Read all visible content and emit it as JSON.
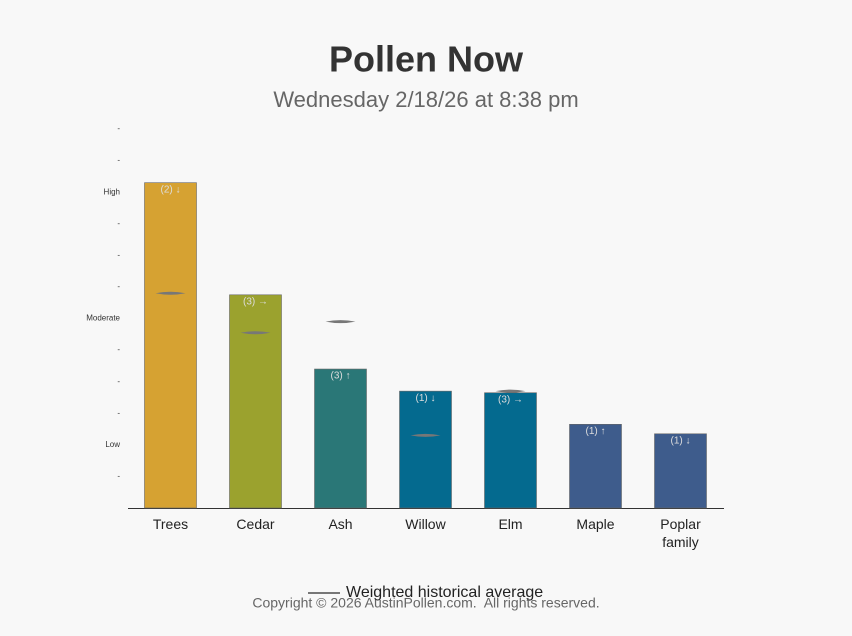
{
  "chart_data": {
    "type": "bar",
    "title": "Pollen Now",
    "subtitle": "Wednesday 2/18/26 at 8:38 pm",
    "categories": [
      "Trees",
      "Cedar",
      "Ash",
      "Willow",
      "Elm",
      "Maple",
      "Poplar family"
    ],
    "values": [
      10.3,
      6.75,
      4.4,
      3.7,
      3.65,
      2.65,
      2.35
    ],
    "colors": [
      "#d6a232",
      "#9ba22e",
      "#2a7777",
      "#046a8f",
      "#046a8f",
      "#3e5c8c",
      "#3e5c8c"
    ],
    "annotations": [
      "(2) ↓",
      "(3) →",
      "(3) ↑",
      "(1) ↓",
      "(3) →",
      "(1) ↑",
      "(1) ↓"
    ],
    "historical": {
      "name": "Weighted historical average",
      "color": "#777777",
      "values": [
        6.8,
        5.55,
        5.9,
        2.3,
        3.7,
        null,
        null
      ]
    },
    "ylim": [
      0,
      12
    ],
    "yticks": [
      {
        "value": 1,
        "label": "-"
      },
      {
        "value": 2,
        "label": "Low"
      },
      {
        "value": 3,
        "label": "-"
      },
      {
        "value": 4,
        "label": "-"
      },
      {
        "value": 5,
        "label": "-"
      },
      {
        "value": 6,
        "label": "Moderate"
      },
      {
        "value": 7,
        "label": "-"
      },
      {
        "value": 8,
        "label": "-"
      },
      {
        "value": 9,
        "label": "-"
      },
      {
        "value": 10,
        "label": "High"
      },
      {
        "value": 11,
        "label": "-"
      },
      {
        "value": 12,
        "label": "-"
      }
    ]
  },
  "footer": "Copyright © 2026 AustinPollen.com.  All rights reserved."
}
